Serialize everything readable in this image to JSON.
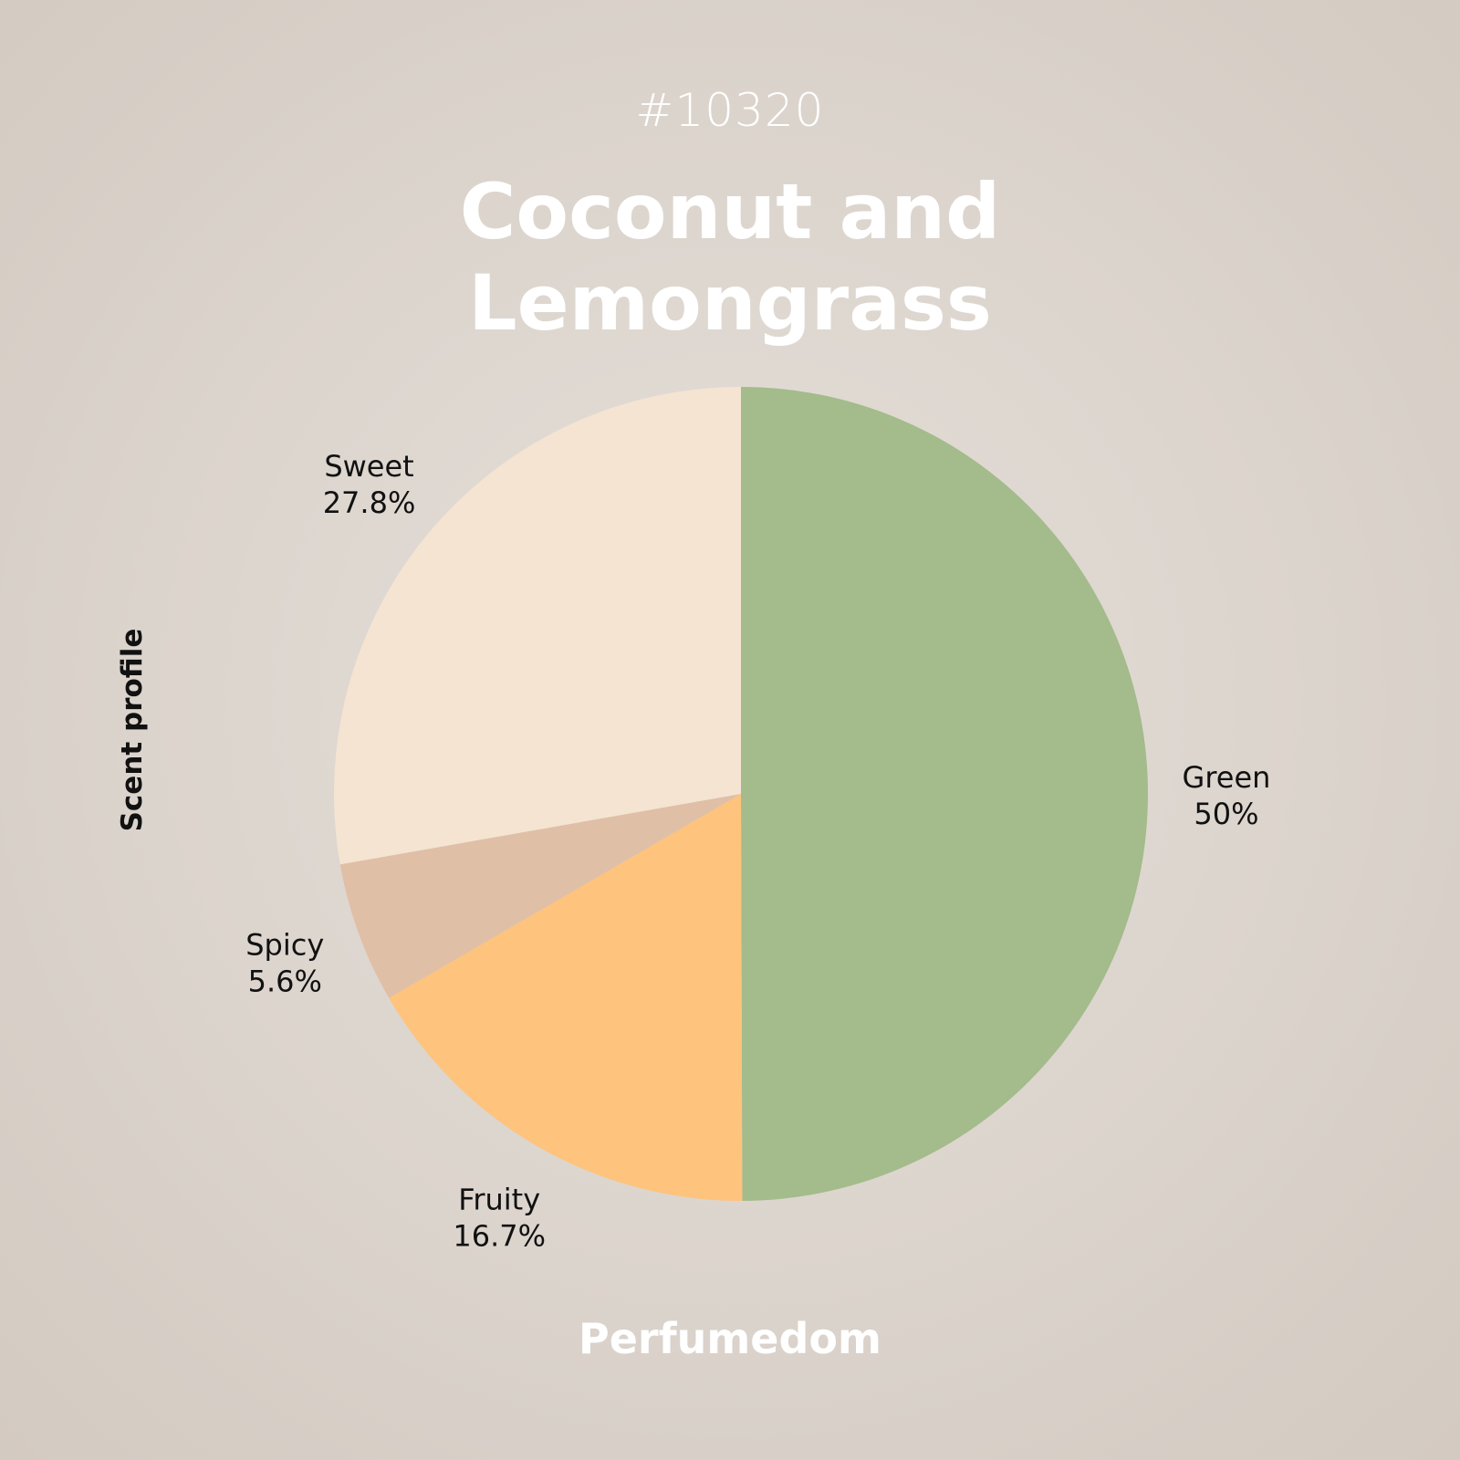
{
  "header": {
    "product_id": "#10320",
    "title_line1": "Coconut and",
    "title_line2": "Lemongrass"
  },
  "footer": {
    "brand": "Perfumedom"
  },
  "chart_data": {
    "type": "pie",
    "title": "Coconut and Lemongrass",
    "ylabel": "Scent profile",
    "start": "top",
    "direction": "clockwise",
    "slices": [
      {
        "label": "Green",
        "value": 50,
        "display": "50%",
        "color": "#a4bb8b"
      },
      {
        "label": "Fruity",
        "value": 16.7,
        "display": "16.7%",
        "color": "#fec37c"
      },
      {
        "label": "Spicy",
        "value": 5.6,
        "display": "5.6%",
        "color": "#e0bfa7"
      },
      {
        "label": "Sweet",
        "value": 27.8,
        "display": "27.8%",
        "color": "#f4e4d1"
      }
    ]
  }
}
